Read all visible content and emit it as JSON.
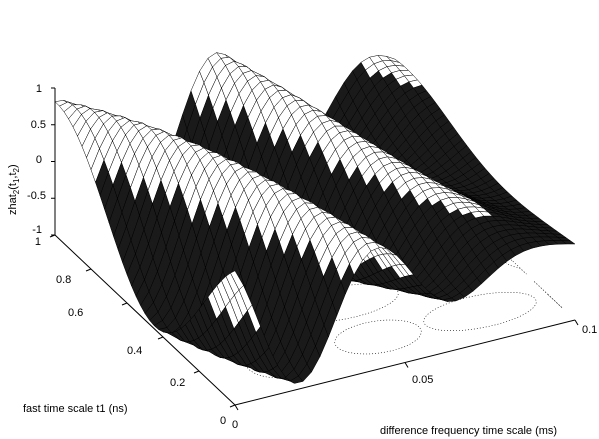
{
  "chart_data": {
    "type": "surface",
    "zlabel": "zhat",
    "zlabel_sub": "2",
    "zlabel_args": "(t",
    "zlabel_args_sub1": "1",
    "zlabel_args_mid": ",t",
    "zlabel_args_sub2": "2",
    "zlabel_args_end": ")",
    "xlabel": "difference frequency time scale (ms)",
    "ylabel": "fast time scale t1 (ns)",
    "x_ticks": [
      "0",
      "0.05",
      "0.1"
    ],
    "y_ticks": [
      "0",
      "0.2",
      "0.4",
      "0.6",
      "0.8",
      "1"
    ],
    "z_ticks": [
      "1",
      "0.5",
      "0",
      "-0.5",
      "-1"
    ],
    "xlim": [
      0,
      0.1
    ],
    "ylim": [
      0,
      1
    ],
    "zlim": [
      -1,
      1
    ],
    "surface_color": "#000000",
    "contour_color": "#000000",
    "grid": false,
    "contour_projection": true
  }
}
